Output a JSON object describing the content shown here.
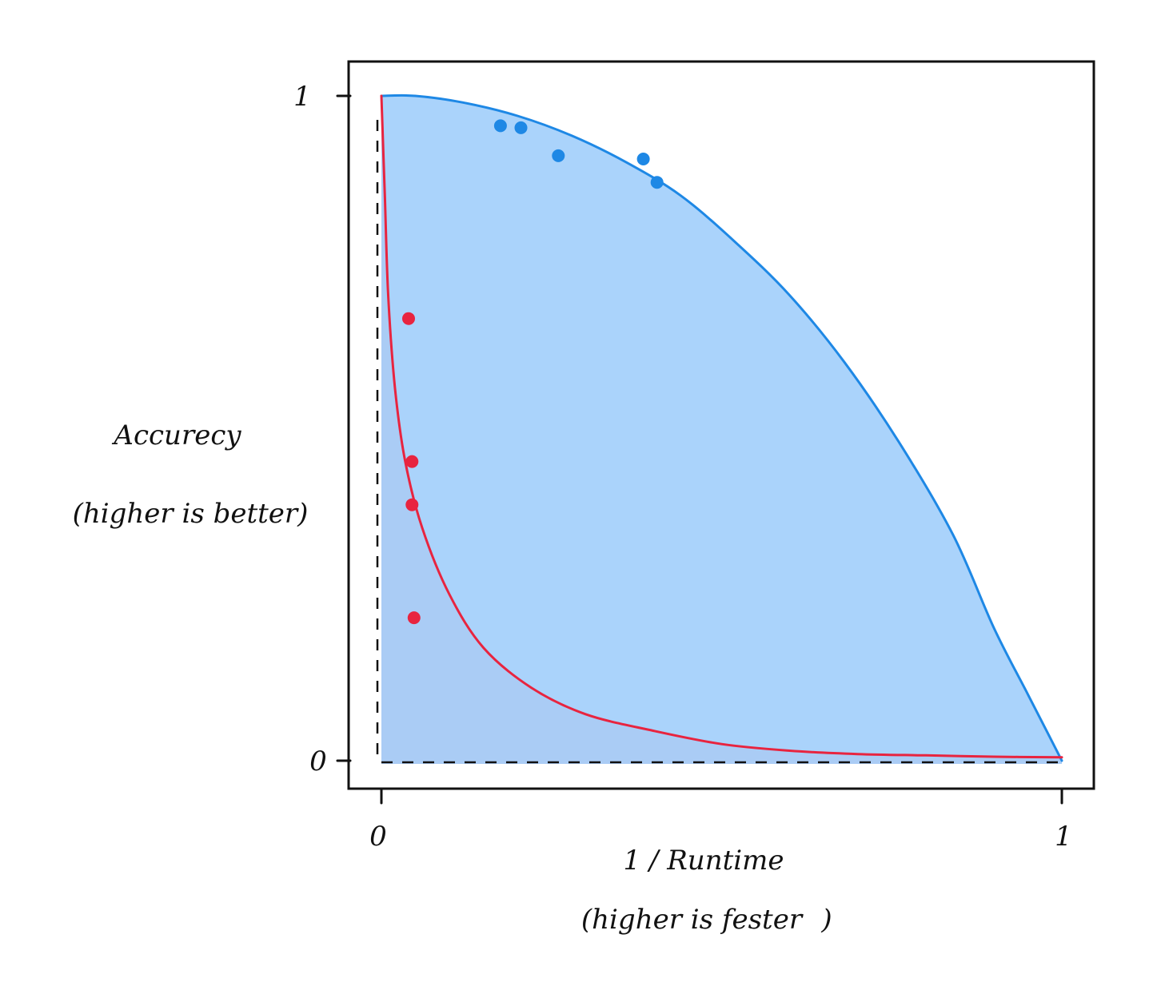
{
  "chart_data": {
    "type": "area",
    "xlabel": "1 / Runtime",
    "xlabel_note": "(higher is fester",
    "xlabel_note_close": ")",
    "ylabel": "Accurecy",
    "ylabel_note": "(higher is better)",
    "xlim": [
      0,
      1
    ],
    "ylim": [
      0,
      1
    ],
    "x_ticks": [
      "0",
      "1"
    ],
    "y_ticks": [
      "0",
      "1"
    ],
    "grid": false,
    "series": [
      {
        "color": "#1e88e5",
        "fill_color": "#a3cffb",
        "curve": [
          [
            0.0,
            1.0
          ],
          [
            0.05,
            1.0
          ],
          [
            0.12,
            0.99
          ],
          [
            0.2,
            0.97
          ],
          [
            0.28,
            0.94
          ],
          [
            0.36,
            0.9
          ],
          [
            0.44,
            0.85
          ],
          [
            0.52,
            0.78
          ],
          [
            0.6,
            0.7
          ],
          [
            0.68,
            0.6
          ],
          [
            0.76,
            0.48
          ],
          [
            0.84,
            0.34
          ],
          [
            0.9,
            0.2
          ],
          [
            0.95,
            0.1
          ],
          [
            0.98,
            0.04
          ],
          [
            1.0,
            0.0
          ]
        ],
        "points": [
          [
            0.175,
            0.955
          ],
          [
            0.205,
            0.952
          ],
          [
            0.26,
            0.91
          ],
          [
            0.385,
            0.905
          ],
          [
            0.405,
            0.87
          ]
        ]
      },
      {
        "color": "#e8243f",
        "fill_color": "#fba3b1",
        "curve": [
          [
            0.0,
            1.0
          ],
          [
            0.005,
            0.85
          ],
          [
            0.01,
            0.7
          ],
          [
            0.02,
            0.56
          ],
          [
            0.035,
            0.45
          ],
          [
            0.06,
            0.35
          ],
          [
            0.1,
            0.25
          ],
          [
            0.15,
            0.17
          ],
          [
            0.22,
            0.11
          ],
          [
            0.3,
            0.07
          ],
          [
            0.4,
            0.045
          ],
          [
            0.5,
            0.025
          ],
          [
            0.6,
            0.015
          ],
          [
            0.7,
            0.01
          ],
          [
            0.8,
            0.008
          ],
          [
            0.9,
            0.006
          ],
          [
            1.0,
            0.005
          ]
        ],
        "points": [
          [
            0.04,
            0.665
          ],
          [
            0.045,
            0.45
          ],
          [
            0.045,
            0.385
          ],
          [
            0.048,
            0.215
          ]
        ]
      }
    ]
  }
}
